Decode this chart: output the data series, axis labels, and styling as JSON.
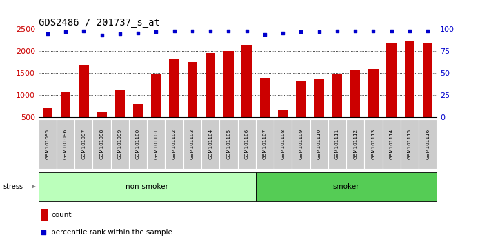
{
  "title": "GDS2486 / 201737_s_at",
  "samples": [
    "GSM101095",
    "GSM101096",
    "GSM101097",
    "GSM101098",
    "GSM101099",
    "GSM101100",
    "GSM101101",
    "GSM101102",
    "GSM101103",
    "GSM101104",
    "GSM101105",
    "GSM101106",
    "GSM101107",
    "GSM101108",
    "GSM101109",
    "GSM101110",
    "GSM101111",
    "GSM101112",
    "GSM101113",
    "GSM101114",
    "GSM101115",
    "GSM101116"
  ],
  "counts": [
    720,
    1080,
    1680,
    610,
    1130,
    800,
    1470,
    1840,
    1760,
    1960,
    2000,
    2150,
    1400,
    670,
    1310,
    1370,
    1490,
    1580,
    1590,
    2180,
    2220,
    2180
  ],
  "percentile_ranks": [
    95,
    97,
    98,
    93,
    95,
    96,
    97,
    98,
    98,
    98,
    98,
    98,
    94,
    96,
    97,
    97,
    98,
    98,
    98,
    98,
    98,
    98
  ],
  "non_smoker_count": 12,
  "smoker_count": 10,
  "bar_color": "#cc0000",
  "dot_color": "#0000cc",
  "left_axis_color": "#cc0000",
  "right_axis_color": "#0000cc",
  "ylim_left": [
    500,
    2500
  ],
  "yticks_left": [
    500,
    1000,
    1500,
    2000,
    2500
  ],
  "ylim_right": [
    0,
    100
  ],
  "yticks_right": [
    0,
    25,
    50,
    75,
    100
  ],
  "grid_yticks": [
    1000,
    1500,
    2000
  ],
  "non_smoker_color": "#bbffbb",
  "smoker_color": "#55cc55",
  "tick_bg_color": "#cccccc",
  "title_fontsize": 10,
  "bar_width": 0.55
}
